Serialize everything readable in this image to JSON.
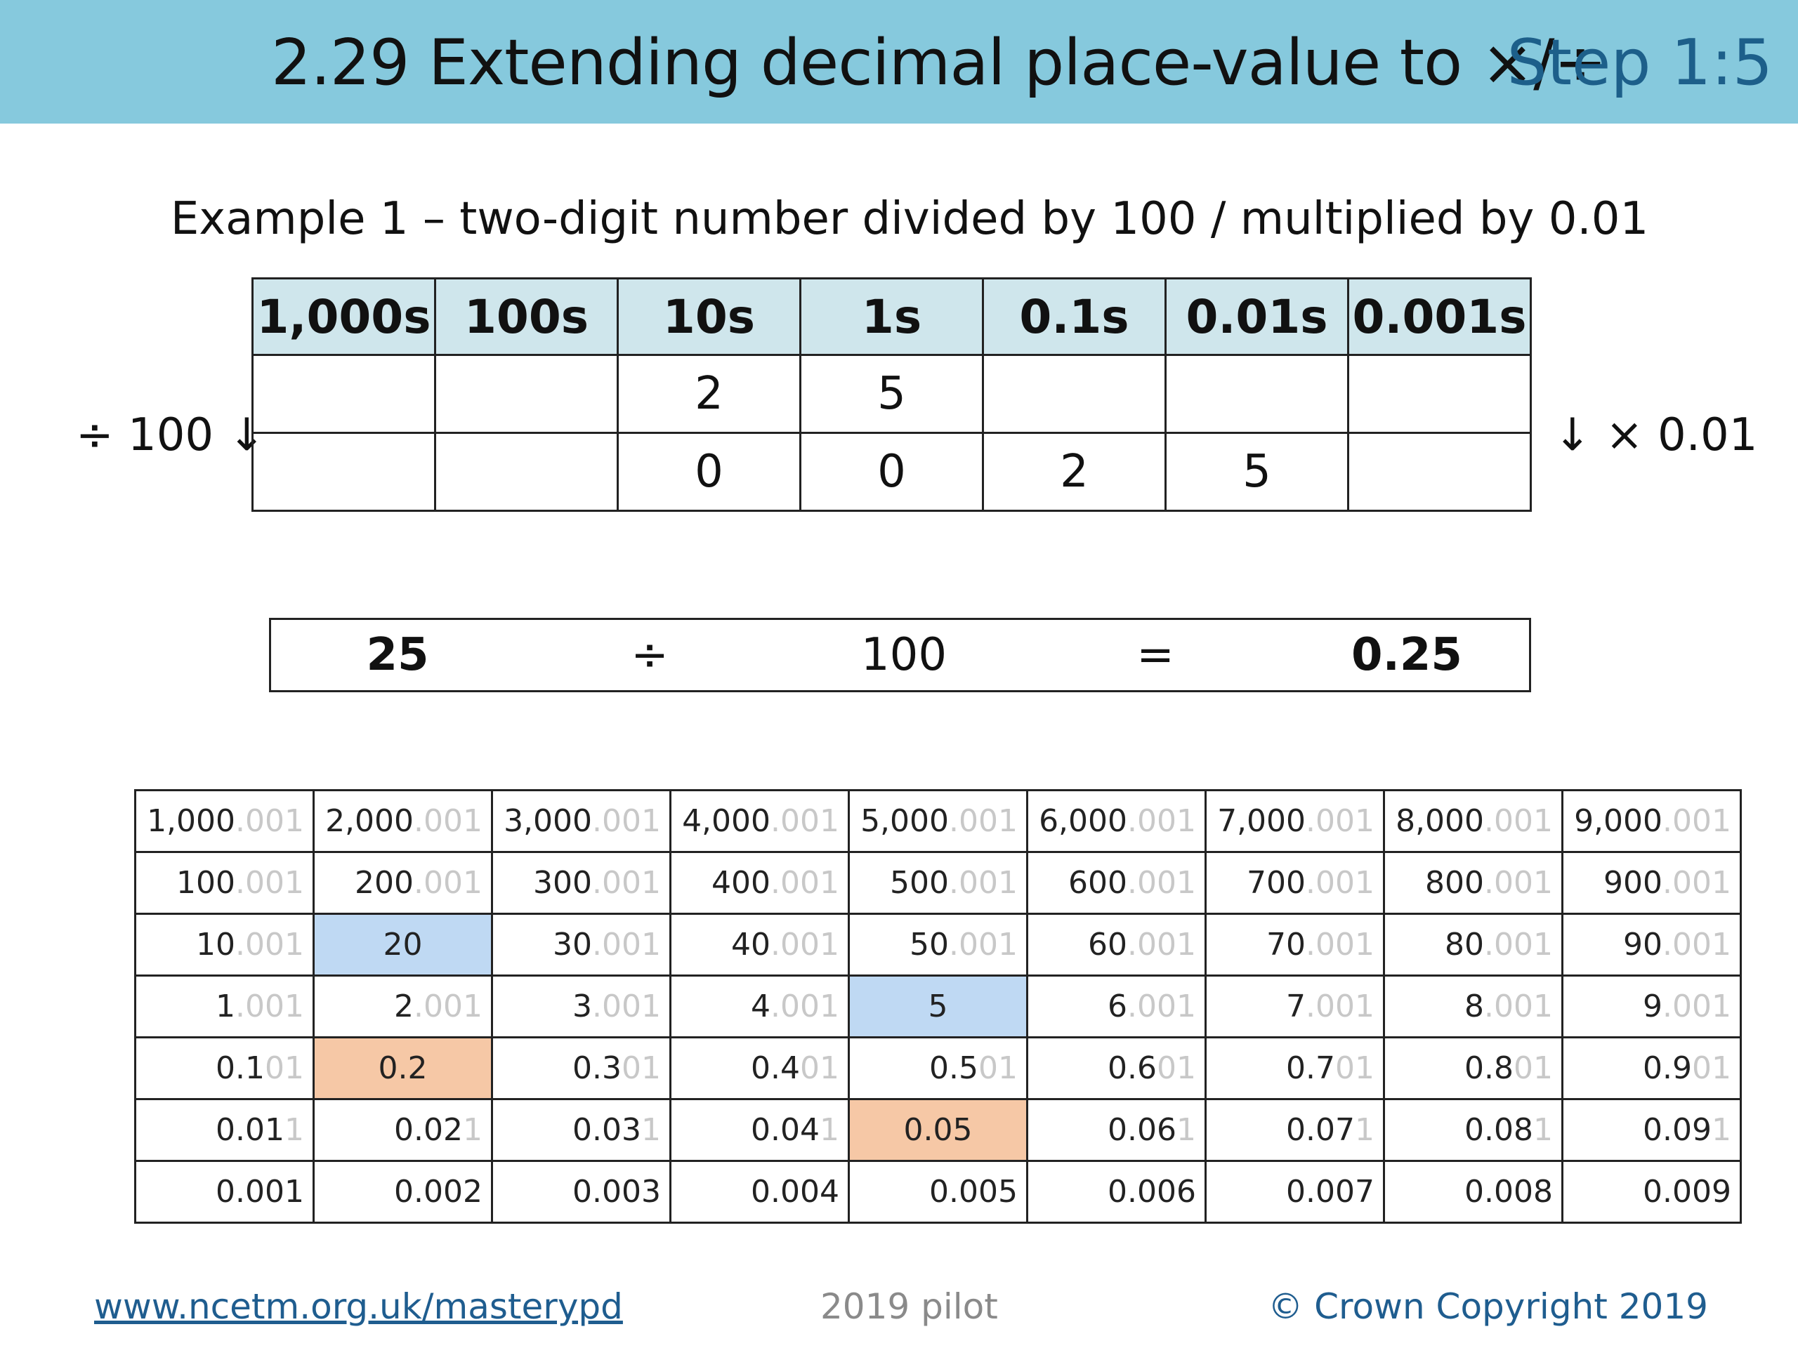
{
  "header": {
    "title": "2.29 Extending decimal place-value to ×/÷",
    "step": "Step 1:5",
    "colors": {
      "banner": "#86c9dd",
      "step_text": "#1d5f8a"
    }
  },
  "example": {
    "title": "Example 1 – two-digit number divided by 100 / multiplied by 0.01"
  },
  "place_value_chart": {
    "headers": [
      "1,000s",
      "100s",
      "10s",
      "1s",
      "0.1s",
      "0.01s",
      "0.001s"
    ],
    "rows": [
      [
        "",
        "",
        "2",
        "5",
        "",
        "",
        ""
      ],
      [
        "",
        "",
        "0",
        "0",
        "2",
        "5",
        ""
      ]
    ],
    "left_label": "÷ 100 ↓",
    "right_label": "↓ × 0.01"
  },
  "equation": {
    "left": "25",
    "operator": "÷",
    "divisor": "100",
    "equals": "=",
    "result": "0.25"
  },
  "gattegno": {
    "rows": [
      [
        [
          "1,000",
          ".001"
        ],
        [
          "2,000",
          ".001"
        ],
        [
          "3,000",
          ".001"
        ],
        [
          "4,000",
          ".001"
        ],
        [
          "5,000",
          ".001"
        ],
        [
          "6,000",
          ".001"
        ],
        [
          "7,000",
          ".001"
        ],
        [
          "8,000",
          ".001"
        ],
        [
          "9,000",
          ".001"
        ]
      ],
      [
        [
          "100",
          ".001"
        ],
        [
          "200",
          ".001"
        ],
        [
          "300",
          ".001"
        ],
        [
          "400",
          ".001"
        ],
        [
          "500",
          ".001"
        ],
        [
          "600",
          ".001"
        ],
        [
          "700",
          ".001"
        ],
        [
          "800",
          ".001"
        ],
        [
          "900",
          ".001"
        ]
      ],
      [
        [
          "10",
          ".001"
        ],
        [
          "20",
          ""
        ],
        [
          "30",
          ".001"
        ],
        [
          "40",
          ".001"
        ],
        [
          "50",
          ".001"
        ],
        [
          "60",
          ".001"
        ],
        [
          "70",
          ".001"
        ],
        [
          "80",
          ".001"
        ],
        [
          "90",
          ".001"
        ]
      ],
      [
        [
          "1",
          ".001"
        ],
        [
          "2",
          ".001"
        ],
        [
          "3",
          ".001"
        ],
        [
          "4",
          ".001"
        ],
        [
          "5",
          ""
        ],
        [
          "6",
          ".001"
        ],
        [
          "7",
          ".001"
        ],
        [
          "8",
          ".001"
        ],
        [
          "9",
          ".001"
        ]
      ],
      [
        [
          "0.1",
          "01"
        ],
        [
          "0.2",
          ""
        ],
        [
          "0.3",
          "01"
        ],
        [
          "0.4",
          "01"
        ],
        [
          "0.5",
          "01"
        ],
        [
          "0.6",
          "01"
        ],
        [
          "0.7",
          "01"
        ],
        [
          "0.8",
          "01"
        ],
        [
          "0.9",
          "01"
        ]
      ],
      [
        [
          "0.01",
          "1"
        ],
        [
          "0.02",
          "1"
        ],
        [
          "0.03",
          "1"
        ],
        [
          "0.04",
          "1"
        ],
        [
          "0.05",
          ""
        ],
        [
          "0.06",
          "1"
        ],
        [
          "0.07",
          "1"
        ],
        [
          "0.08",
          "1"
        ],
        [
          "0.09",
          "1"
        ]
      ],
      [
        [
          "0.001",
          ""
        ],
        [
          "0.002",
          ""
        ],
        [
          "0.003",
          ""
        ],
        [
          "0.004",
          ""
        ],
        [
          "0.005",
          ""
        ],
        [
          "0.006",
          ""
        ],
        [
          "0.007",
          ""
        ],
        [
          "0.008",
          ""
        ],
        [
          "0.009",
          ""
        ]
      ]
    ],
    "highlights": {
      "blue": [
        [
          2,
          1
        ],
        [
          3,
          4
        ]
      ],
      "orange": [
        [
          4,
          1
        ],
        [
          5,
          4
        ]
      ]
    },
    "colors": {
      "blue": "#bfd9f3",
      "orange": "#f6c8a6",
      "ghost": "#c8c8c8"
    }
  },
  "footer": {
    "link": "www.ncetm.org.uk/masterypd",
    "pilot": "2019 pilot",
    "copyright": "© Crown Copyright 2019"
  }
}
